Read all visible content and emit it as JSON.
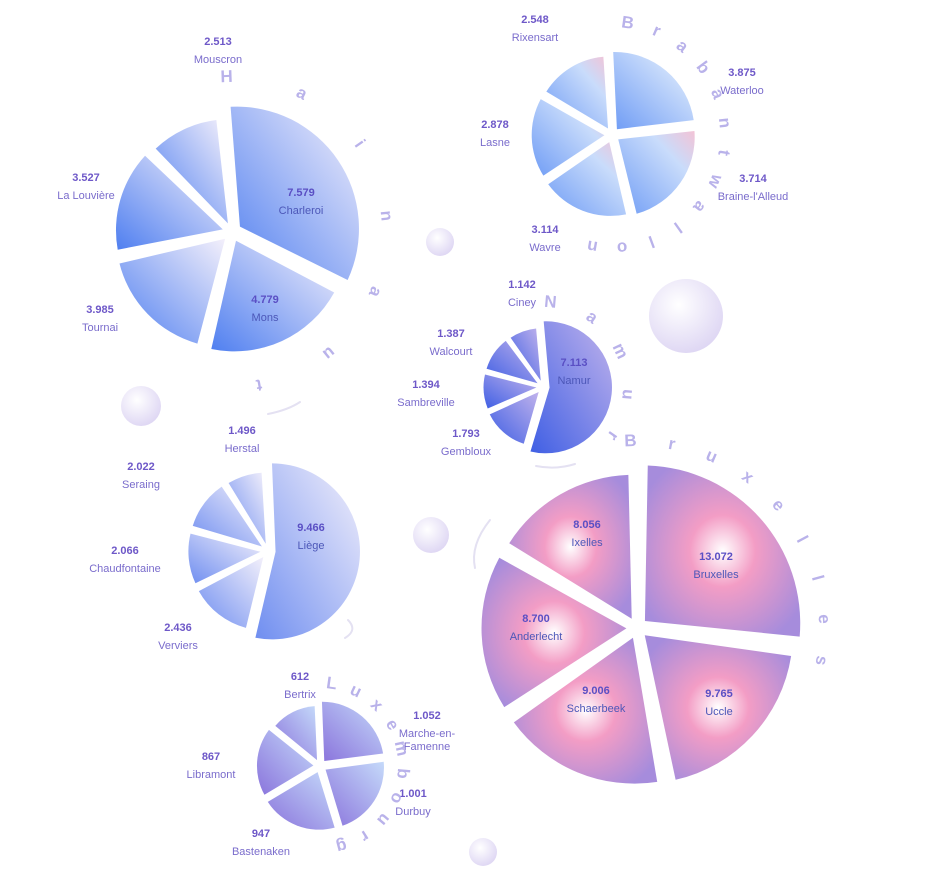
{
  "chart_data": [
    {
      "type": "pie",
      "region": "Hainaut",
      "slices": [
        {
          "name": "Charleroi",
          "label": "7.579",
          "value": 7579
        },
        {
          "name": "Mons",
          "label": "4.779",
          "value": 4779
        },
        {
          "name": "Tournai",
          "label": "3.985",
          "value": 3985
        },
        {
          "name": "La Louvière",
          "label": "3.527",
          "value": 3527
        },
        {
          "name": "Mouscron",
          "label": "2.513",
          "value": 2513
        }
      ]
    },
    {
      "type": "pie",
      "region": "Brabant wallon",
      "slices": [
        {
          "name": "Waterloo",
          "label": "3.875",
          "value": 3875
        },
        {
          "name": "Braine-l'Alleud",
          "label": "3.714",
          "value": 3714
        },
        {
          "name": "Wavre",
          "label": "3.114",
          "value": 3114
        },
        {
          "name": "Lasne",
          "label": "2.878",
          "value": 2878
        },
        {
          "name": "Rixensart",
          "label": "2.548",
          "value": 2548
        }
      ]
    },
    {
      "type": "pie",
      "region": "Namur",
      "slices": [
        {
          "name": "Namur",
          "label": "7.113",
          "value": 7113
        },
        {
          "name": "Gembloux",
          "label": "1.793",
          "value": 1793
        },
        {
          "name": "Sambreville",
          "label": "1.394",
          "value": 1394
        },
        {
          "name": "Walcourt",
          "label": "1.387",
          "value": 1387
        },
        {
          "name": "Ciney",
          "label": "1.142",
          "value": 1142
        }
      ]
    },
    {
      "type": "pie",
      "region": "Liège",
      "slices": [
        {
          "name": "Liège",
          "label": "9.466",
          "value": 9466
        },
        {
          "name": "Verviers",
          "label": "2.436",
          "value": 2436
        },
        {
          "name": "Chaudfontaine",
          "label": "2.066",
          "value": 2066
        },
        {
          "name": "Seraing",
          "label": "2.022",
          "value": 2022
        },
        {
          "name": "Herstal",
          "label": "1.496",
          "value": 1496
        }
      ]
    },
    {
      "type": "pie",
      "region": "Bruxelles",
      "slices": [
        {
          "name": "Bruxelles",
          "label": "13.072",
          "value": 13072
        },
        {
          "name": "Uccle",
          "label": "9.765",
          "value": 9765
        },
        {
          "name": "Schaerbeek",
          "label": "9.006",
          "value": 9006
        },
        {
          "name": "Anderlecht",
          "label": "8.700",
          "value": 8700
        },
        {
          "name": "Ixelles",
          "label": "8.056",
          "value": 8056
        }
      ]
    },
    {
      "type": "pie",
      "region": "Luxembourg",
      "slices": [
        {
          "name": "Marche-en-Famenne",
          "label": "1.052",
          "value": 1052
        },
        {
          "name": "Durbuy",
          "label": "1.001",
          "value": 1001
        },
        {
          "name": "Bastenaken",
          "label": "947",
          "value": 947
        },
        {
          "name": "Libramont",
          "label": "867",
          "value": 867
        },
        {
          "name": "Bertrix",
          "label": "612",
          "value": 612
        }
      ]
    }
  ],
  "colors": {
    "blue": "#4f7ff0",
    "purple": "#9a86dc",
    "pink": "#ef8fc0",
    "label_value": "#6e58c8",
    "label_text": "#7a6ccc",
    "region_text": "#b9b2ea"
  }
}
